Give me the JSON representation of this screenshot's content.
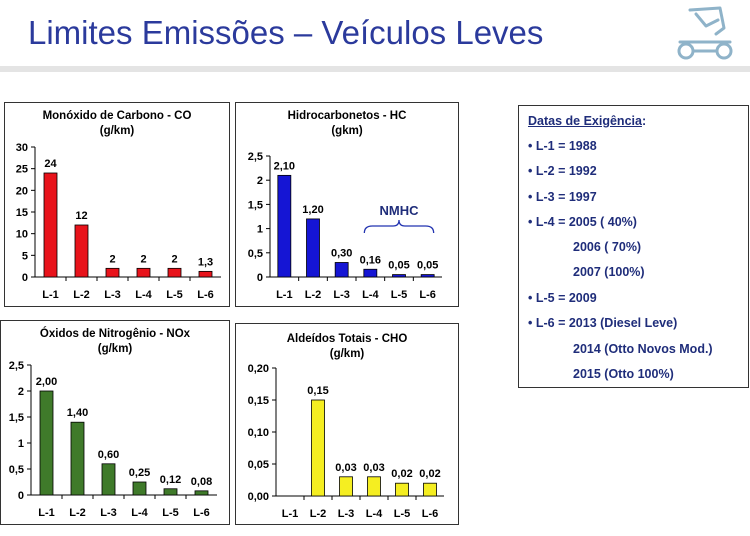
{
  "header": {
    "title": "Limites Emissões – Veículos Leves",
    "logo_icon": "vehicle-logo-icon",
    "accent_color": "#2b3a9c"
  },
  "chart_data": [
    {
      "type": "bar",
      "title": "Monóxido de Carbono - CO",
      "subtitle": "(g/km)",
      "color": "#e8131b",
      "categories": [
        "L-1",
        "L-2",
        "L-3",
        "L-4",
        "L-5",
        "L-6"
      ],
      "values": [
        24,
        12,
        2,
        2,
        2,
        1.3
      ],
      "data_labels": [
        "24",
        "12",
        "2",
        "2",
        "2",
        "1,3"
      ],
      "ylim": [
        0,
        30
      ],
      "yticks": [
        "0",
        "5",
        "10",
        "15",
        "20",
        "25",
        "30"
      ],
      "annotation": ""
    },
    {
      "type": "bar",
      "title": "Hidrocarbonetos - HC",
      "subtitle": "(gkm)",
      "color": "#1515d4",
      "categories": [
        "L-1",
        "L-2",
        "L-3",
        "L-4",
        "L-5",
        "L-6"
      ],
      "values": [
        2.1,
        1.2,
        0.3,
        0.16,
        0.05,
        0.05
      ],
      "data_labels": [
        "2,10",
        "1,20",
        "0,30",
        "0,16",
        "0,05",
        "0,05"
      ],
      "ylim": [
        0,
        2.5
      ],
      "yticks": [
        "0",
        "0,5",
        "1",
        "1,5",
        "2",
        "2,5"
      ],
      "annotation": "NMHC"
    },
    {
      "type": "bar",
      "title": "Óxidos de Nitrogênio - NOx",
      "subtitle": "(g/km)",
      "color": "#3f7a2a",
      "categories": [
        "L-1",
        "L-2",
        "L-3",
        "L-4",
        "L-5",
        "L-6"
      ],
      "values": [
        2.0,
        1.4,
        0.6,
        0.25,
        0.12,
        0.08
      ],
      "data_labels": [
        "2,00",
        "1,40",
        "0,60",
        "0,25",
        "0,12",
        "0,08"
      ],
      "ylim": [
        0,
        2.5
      ],
      "yticks": [
        "0",
        "0,5",
        "1",
        "1,5",
        "2",
        "2,5"
      ],
      "annotation": ""
    },
    {
      "type": "bar",
      "title": "Aldeídos Totais - CHO",
      "subtitle": "(g/km)",
      "color": "#f5ee21",
      "categories": [
        "L-1",
        "L-2",
        "L-3",
        "L-4",
        "L-5",
        "L-6"
      ],
      "values": [
        null,
        0.15,
        0.03,
        0.03,
        0.02,
        0.02
      ],
      "data_labels": [
        "",
        "0,15",
        "0,03",
        "0,03",
        "0,02",
        "0,02"
      ],
      "ylim": [
        0,
        0.2
      ],
      "yticks": [
        "0,00",
        "0,05",
        "0,10",
        "0,15",
        "0,20"
      ],
      "annotation": ""
    }
  ],
  "info": {
    "heading": "Datas de Exigência",
    "heading_suffix": ":",
    "lines": [
      "• L-1 = 1988",
      "• L-2 = 1992",
      "• L-3 = 1997",
      "• L-4 = 2005 (  40%)",
      "2006 (  70%)",
      "2007 (100%)",
      "• L-5 = 2009",
      "• L-6 = 2013 (Diesel Leve)",
      "2014 (Otto Novos Mod.)",
      "2015 (Otto 100%)"
    ]
  }
}
